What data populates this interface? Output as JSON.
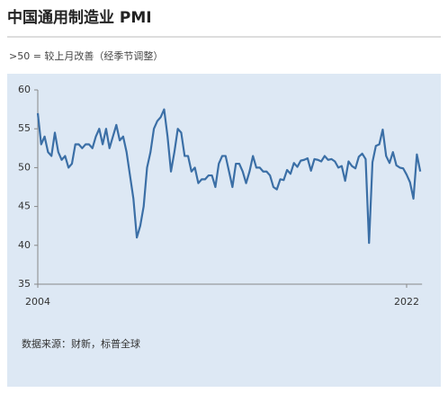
{
  "title": "中国通用制造业 PMI",
  "subtitle": ">50 = 较上月改善（经季节调整）",
  "source": "数据来源：财新，标普全球",
  "chart_data": {
    "type": "line",
    "color": "#3b6fa6",
    "categories": [
      "2004",
      null,
      null,
      null,
      null,
      null,
      null,
      null,
      null,
      null,
      null,
      null,
      null,
      null,
      null,
      null,
      null,
      null,
      null,
      null,
      null,
      null,
      null,
      null,
      null,
      null,
      null,
      null,
      null,
      null,
      null,
      null,
      null,
      null,
      null,
      null,
      null,
      null,
      null,
      null,
      null,
      null,
      null,
      null,
      null,
      null,
      null,
      null,
      null,
      null,
      null,
      null,
      null,
      null,
      null,
      null,
      null,
      null,
      null,
      null,
      null,
      null,
      null,
      null,
      null,
      null,
      null,
      null,
      null,
      null,
      null,
      null,
      null,
      null,
      null,
      null,
      null,
      null,
      null,
      null,
      null,
      null,
      null,
      null,
      null,
      null,
      null,
      null,
      null,
      null,
      null,
      null,
      null,
      null,
      null,
      null,
      null,
      null,
      null,
      null,
      null,
      null,
      null,
      null,
      null,
      null,
      null,
      null,
      "2022",
      null,
      null,
      null,
      null
    ],
    "values": [
      57,
      53,
      54,
      52,
      51.5,
      54.5,
      52,
      51,
      51.5,
      50,
      50.5,
      53,
      53,
      52.5,
      53,
      53,
      52.5,
      54,
      55,
      53,
      55,
      52.5,
      54,
      55.5,
      53.5,
      54,
      52,
      49,
      46,
      41,
      42.5,
      45,
      50,
      52,
      55,
      56,
      56.5,
      57.5,
      54,
      49.5,
      52,
      55,
      54.5,
      51.5,
      51.5,
      49.5,
      50,
      48,
      48.5,
      48.5,
      49,
      49,
      47.5,
      50.5,
      51.5,
      51.5,
      49.5,
      47.5,
      50.5,
      50.5,
      49.5,
      48,
      49.5,
      51.5,
      50,
      50,
      49.5,
      49.5,
      49,
      47.5,
      47.2,
      48.5,
      48.4,
      49.7,
      49.2,
      50.6,
      50.1,
      50.9,
      51,
      51.2,
      49.6,
      51.1,
      51,
      50.8,
      51.5,
      51,
      51.1,
      50.8,
      50,
      50.2,
      48.3,
      50.8,
      50.2,
      49.9,
      51.4,
      51.8,
      51.1,
      40.3,
      50.7,
      52.8,
      53,
      54.9,
      51.5,
      50.6,
      52,
      50.3,
      50,
      49.9,
      49.1,
      48.1,
      46,
      51.7,
      49.5
    ],
    "ylim": [
      35,
      60
    ],
    "yticks": [
      35,
      40,
      45,
      50,
      55,
      60
    ]
  }
}
